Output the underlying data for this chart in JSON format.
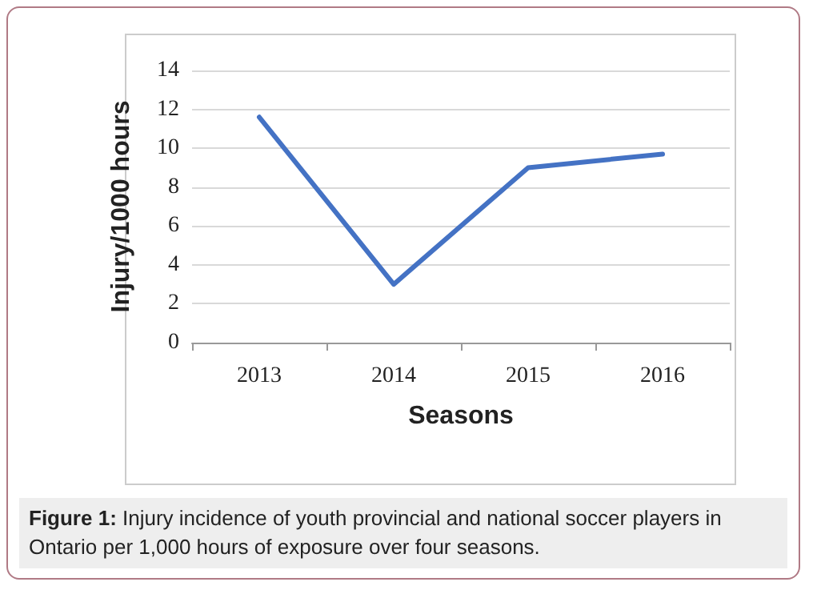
{
  "chart_data": {
    "type": "line",
    "categories": [
      "2013",
      "2014",
      "2015",
      "2016"
    ],
    "series": [
      {
        "color": "#4472c4",
        "values": [
          11.6,
          3.0,
          9.0,
          9.7
        ]
      }
    ],
    "xlabel": "Seasons",
    "ylabel": "Injury/1000 hours",
    "ylim": [
      0,
      14
    ],
    "yticks": [
      0,
      2,
      4,
      6,
      8,
      10,
      12,
      14
    ],
    "grid": "y",
    "marker": "none",
    "line_style": "solid",
    "annotations": [
      "Figure 1: Injury incidence of youth provincial and national soccer players in Ontario per 1,000 hours of exposure over four seasons."
    ]
  }
}
